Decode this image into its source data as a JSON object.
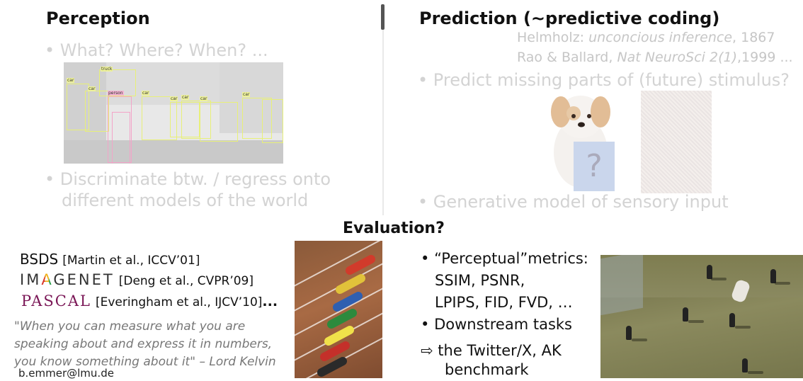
{
  "left": {
    "heading": "Perception",
    "bullet1": "What? Where? When? ...",
    "bullet2_line1": "Discriminate btw. / regress onto",
    "bullet2_line2": "different models of the world",
    "scene_labels": [
      "truck",
      "person",
      "car",
      "car",
      "car",
      "car",
      "car",
      "car",
      "car"
    ]
  },
  "right": {
    "heading": "Prediction (~predictive coding)",
    "ref1_author": "Helmholz: ",
    "ref1_title": "unconcious inference",
    "ref1_year": ", 1867",
    "ref2_author": "Rao & Ballard, ",
    "ref2_journal": "Nat NeuroSci 2(1)",
    "ref2_year": ",1999 ...",
    "bullet1": "Predict missing parts of (future) stimulus?",
    "question_mark": "?",
    "bullet2": "Generative model of sensory input"
  },
  "evaluation": {
    "heading": "Evaluation?",
    "datasets": [
      {
        "name": "BSDS",
        "cite": "[Martin et al., ICCV’01]"
      },
      {
        "name": "IMAGENET",
        "cite": "[Deng et al., CVPR’09]"
      },
      {
        "name": "PASCAL",
        "cite": "[Everingham et al., IJCV’10]"
      }
    ],
    "ellipsis": "...",
    "quote_line1": "\"When you can measure what you are",
    "quote_line2": "speaking about and express it in numbers,",
    "quote_line3": "you know something about it\" – Lord Kelvin",
    "email": "b.emmer@lmu.de",
    "metrics_title": "“Perceptual”metrics:",
    "metrics_line1": "SSIM, PSNR,",
    "metrics_line2": "LPIPS, FID, FVD, …",
    "downstream": "Downstream tasks",
    "arrow": "⇨",
    "twitter_line1": "the Twitter/X, AK",
    "twitter_line2": "benchmark"
  },
  "colors": {
    "faded_text": "#d3d3d3",
    "pascal": "#7a1656",
    "imagenet_a_red": "#d9352b",
    "imagenet_a_green": "#2e9d4a",
    "imagenet_a_yellow": "#f0b21a"
  }
}
